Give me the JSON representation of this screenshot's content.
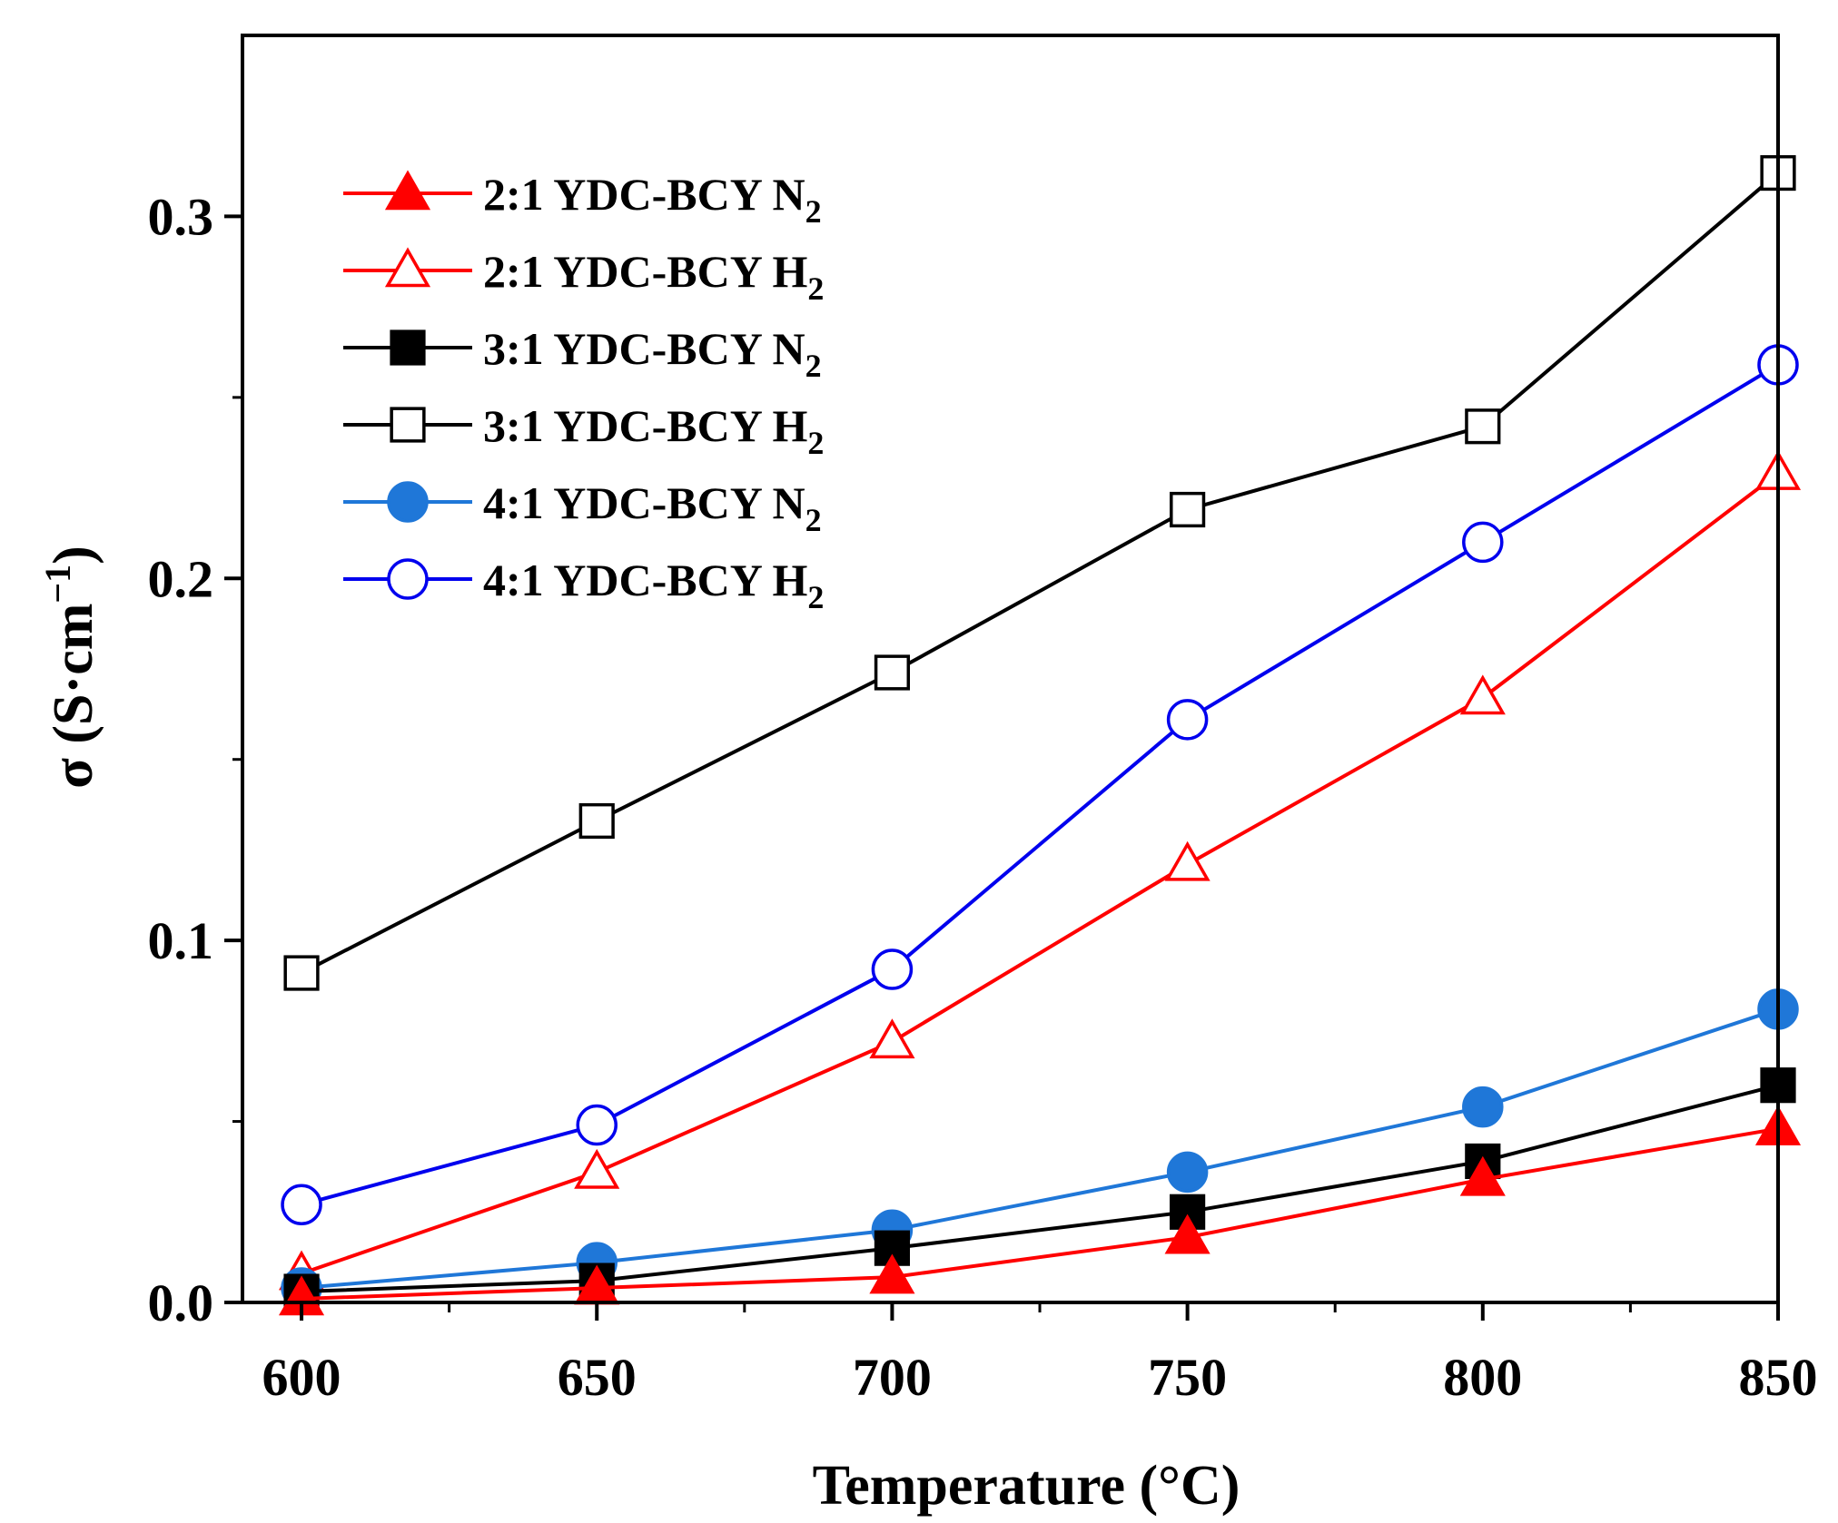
{
  "chart_data": {
    "type": "line",
    "title": "",
    "xlabel": "Temperature (°C)",
    "ylabel_parts": {
      "main": "σ (S·cm",
      "sup": "−1",
      "close": ")"
    },
    "xlim": [
      590,
      850
    ],
    "ylim": [
      0.0,
      0.35
    ],
    "x_ticks": [
      600,
      650,
      700,
      750,
      800,
      850
    ],
    "x_tick_labels": [
      "600",
      "650",
      "700",
      "750",
      "800",
      "850"
    ],
    "y_ticks": [
      0.0,
      0.1,
      0.2,
      0.3
    ],
    "y_tick_labels": [
      "0.0",
      "0.1",
      "0.2",
      "0.3"
    ],
    "x": [
      600,
      650,
      700,
      750,
      800,
      850
    ],
    "legend_position": "top-left",
    "series": [
      {
        "id": "ratio21-n2",
        "name": "2:1 YDC-BCY N2",
        "label_main": "2:1 YDC-BCY N",
        "label_sub": "2",
        "color": "#ff0000",
        "marker": "triangle",
        "filled": true,
        "values": [
          0.001,
          0.004,
          0.007,
          0.018,
          0.034,
          0.048
        ]
      },
      {
        "id": "ratio21-h2",
        "name": "2:1 YDC-BCY H2",
        "label_main": "2:1 YDC-BCY H",
        "label_sub": "2",
        "color": "#ff0000",
        "marker": "triangle",
        "filled": false,
        "values": [
          0.008,
          0.036,
          0.072,
          0.121,
          0.167,
          0.229
        ]
      },
      {
        "id": "ratio31-n2",
        "name": "3:1 YDC-BCY N2",
        "label_main": "3:1 YDC-BCY N",
        "label_sub": "2",
        "color": "#000000",
        "marker": "square",
        "filled": true,
        "values": [
          0.003,
          0.006,
          0.015,
          0.025,
          0.039,
          0.06
        ]
      },
      {
        "id": "ratio31-h2",
        "name": "3:1 YDC-BCY H2",
        "label_main": "3:1 YDC-BCY H",
        "label_sub": "2",
        "color": "#000000",
        "marker": "square",
        "filled": false,
        "values": [
          0.091,
          0.133,
          0.174,
          0.219,
          0.242,
          0.312
        ]
      },
      {
        "id": "ratio41-n2",
        "name": "4:1 YDC-BCY N2",
        "label_main": "4:1 YDC-BCY N",
        "label_sub": "2",
        "color": "#1f77d8",
        "marker": "circle",
        "filled": true,
        "values": [
          0.004,
          0.011,
          0.02,
          0.036,
          0.054,
          0.081
        ]
      },
      {
        "id": "ratio41-h2",
        "name": "4:1 YDC-BCY H2",
        "label_main": "4:1 YDC-BCY H",
        "label_sub": "2",
        "color": "#0000ee",
        "marker": "circle",
        "filled": false,
        "values": [
          0.027,
          0.049,
          0.092,
          0.161,
          0.21,
          0.259
        ]
      }
    ]
  }
}
